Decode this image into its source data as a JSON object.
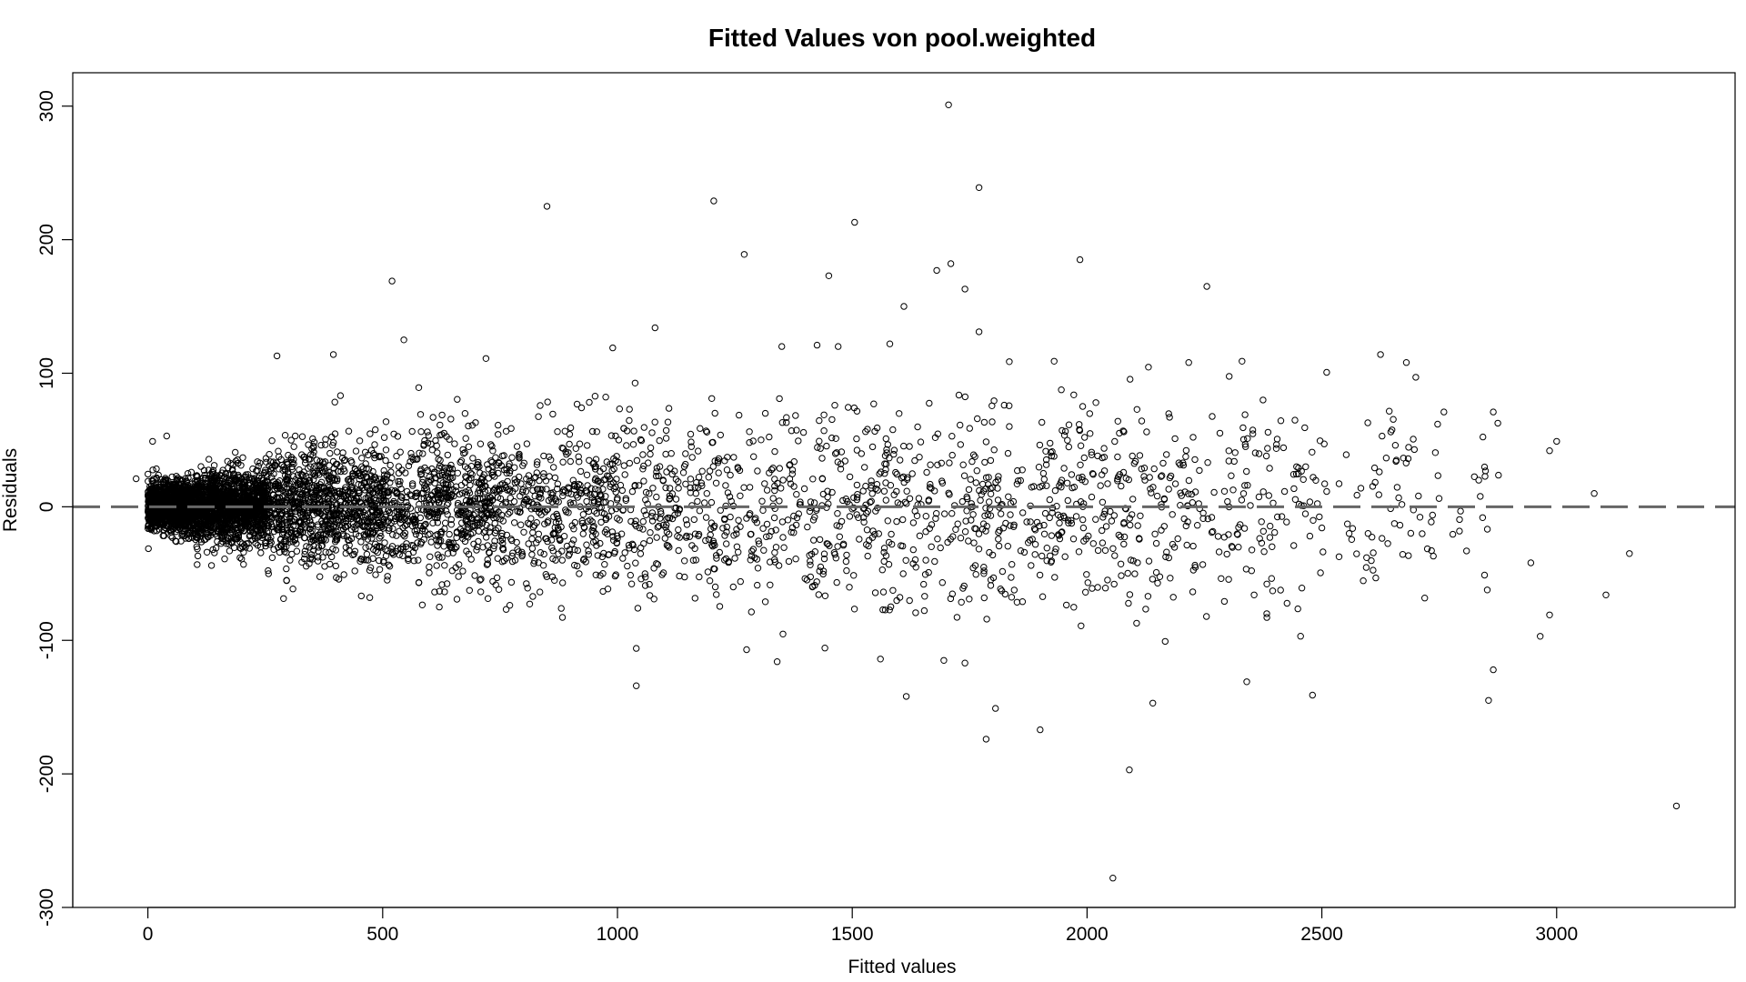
{
  "chart_data": {
    "type": "scatter",
    "title": "Fitted Values von pool.weighted",
    "xlabel": "Fitted values",
    "ylabel": "Residuals",
    "xlim": [
      -160,
      3380
    ],
    "ylim": [
      -300,
      325
    ],
    "x_ticks": [
      0,
      500,
      1000,
      1500,
      2000,
      2500,
      3000
    ],
    "y_ticks": [
      -300,
      -200,
      -100,
      0,
      100,
      200,
      300
    ],
    "reference_line": {
      "y": 0,
      "style": "dashed",
      "color": "#666666"
    },
    "point_color": "#000000",
    "marker": "open-circle",
    "highlighted_points": [
      {
        "x": 1705,
        "y": 301
      },
      {
        "x": 1770,
        "y": 239
      },
      {
        "x": 1205,
        "y": 229
      },
      {
        "x": 850,
        "y": 225
      },
      {
        "x": 1505,
        "y": 213
      },
      {
        "x": 1270,
        "y": 189
      },
      {
        "x": 1985,
        "y": 185
      },
      {
        "x": 1710,
        "y": 182
      },
      {
        "x": 1680,
        "y": 177
      },
      {
        "x": 1450,
        "y": 173
      },
      {
        "x": 520,
        "y": 169
      },
      {
        "x": 2255,
        "y": 165
      },
      {
        "x": 1740,
        "y": 163
      },
      {
        "x": 1610,
        "y": 150
      },
      {
        "x": 1770,
        "y": 131
      },
      {
        "x": 1080,
        "y": 134
      },
      {
        "x": 545,
        "y": 125
      },
      {
        "x": 1580,
        "y": 122
      },
      {
        "x": 990,
        "y": 119
      },
      {
        "x": 1350,
        "y": 120
      },
      {
        "x": 1425,
        "y": 121
      },
      {
        "x": 1470,
        "y": 120
      },
      {
        "x": 275,
        "y": 113
      },
      {
        "x": 395,
        "y": 114
      },
      {
        "x": 720,
        "y": 111
      },
      {
        "x": 2625,
        "y": 114
      },
      {
        "x": 2330,
        "y": 109
      },
      {
        "x": 1930,
        "y": 109
      },
      {
        "x": 2680,
        "y": 108
      },
      {
        "x": 1040,
        "y": -106
      },
      {
        "x": 1275,
        "y": -107
      },
      {
        "x": 1040,
        "y": -134
      },
      {
        "x": 1340,
        "y": -116
      },
      {
        "x": 1560,
        "y": -114
      },
      {
        "x": 1695,
        "y": -115
      },
      {
        "x": 1740,
        "y": -117
      },
      {
        "x": 1615,
        "y": -142
      },
      {
        "x": 1805,
        "y": -151
      },
      {
        "x": 1785,
        "y": -174
      },
      {
        "x": 1900,
        "y": -167
      },
      {
        "x": 2090,
        "y": -197
      },
      {
        "x": 2055,
        "y": -278
      },
      {
        "x": 2140,
        "y": -147
      },
      {
        "x": 2340,
        "y": -131
      },
      {
        "x": 2480,
        "y": -141
      },
      {
        "x": 2855,
        "y": -145
      },
      {
        "x": 2865,
        "y": -122
      },
      {
        "x": 3255,
        "y": -224
      },
      {
        "x": 2965,
        "y": -97
      },
      {
        "x": 2985,
        "y": -81
      },
      {
        "x": 3105,
        "y": -66
      },
      {
        "x": 2945,
        "y": -42
      },
      {
        "x": 3155,
        "y": -35
      },
      {
        "x": 3080,
        "y": 10
      },
      {
        "x": 2985,
        "y": 42
      },
      {
        "x": 3000,
        "y": 49
      },
      {
        "x": 2865,
        "y": 71
      },
      {
        "x": 2760,
        "y": 71
      },
      {
        "x": 2700,
        "y": 97
      },
      {
        "x": -25,
        "y": 21
      },
      {
        "x": 40,
        "y": 53
      },
      {
        "x": 10,
        "y": 49
      }
    ],
    "density_bands": [
      {
        "x_min": 0,
        "x_max": 100,
        "sd": 9,
        "count": 1300
      },
      {
        "x_min": 100,
        "x_max": 250,
        "sd": 13,
        "count": 1400
      },
      {
        "x_min": 250,
        "x_max": 500,
        "sd": 22,
        "count": 1000
      },
      {
        "x_min": 500,
        "x_max": 750,
        "sd": 27,
        "count": 650
      },
      {
        "x_min": 750,
        "x_max": 1000,
        "sd": 30,
        "count": 420
      },
      {
        "x_min": 1000,
        "x_max": 1250,
        "sd": 33,
        "count": 260
      },
      {
        "x_min": 1250,
        "x_max": 1500,
        "sd": 36,
        "count": 200
      },
      {
        "x_min": 1500,
        "x_max": 1750,
        "sd": 38,
        "count": 200
      },
      {
        "x_min": 1750,
        "x_max": 2000,
        "sd": 38,
        "count": 220
      },
      {
        "x_min": 2000,
        "x_max": 2250,
        "sd": 38,
        "count": 170
      },
      {
        "x_min": 2250,
        "x_max": 2500,
        "sd": 38,
        "count": 120
      },
      {
        "x_min": 2500,
        "x_max": 2750,
        "sd": 40,
        "count": 70
      },
      {
        "x_min": 2750,
        "x_max": 2880,
        "sd": 40,
        "count": 18
      }
    ],
    "grid": false,
    "legend": "none"
  }
}
